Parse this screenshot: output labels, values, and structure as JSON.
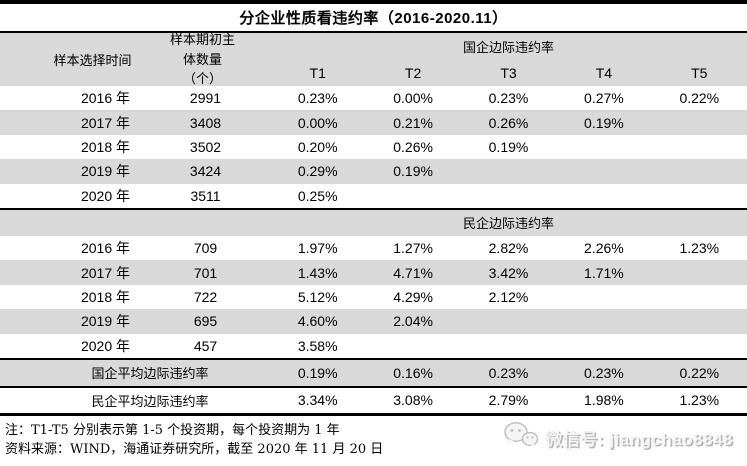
{
  "colors": {
    "band_gray": "#d9d9d9",
    "row_alt_gray": "#d9d9d9",
    "rule_black": "#000000",
    "watermark_gray": "#b3b3b3"
  },
  "chart_data": {
    "type": "table",
    "title": "分企业性质看违约率（2016-2020.11）",
    "header": {
      "time_label": "样本选择时间",
      "count_label_line1": "样本期初主体数量",
      "count_label_line2": "（个）",
      "periods": [
        "T1",
        "T2",
        "T3",
        "T4",
        "T5"
      ]
    },
    "sections": [
      {
        "header": "国企边际违约率",
        "rows": [
          {
            "year": "2016 年",
            "count": "2991",
            "values": [
              "0.23%",
              "0.00%",
              "0.23%",
              "0.27%",
              "0.22%"
            ]
          },
          {
            "year": "2017 年",
            "count": "3408",
            "values": [
              "0.00%",
              "0.21%",
              "0.26%",
              "0.19%",
              ""
            ]
          },
          {
            "year": "2018 年",
            "count": "3502",
            "values": [
              "0.20%",
              "0.26%",
              "0.19%",
              "",
              ""
            ]
          },
          {
            "year": "2019 年",
            "count": "3424",
            "values": [
              "0.29%",
              "0.19%",
              "",
              "",
              ""
            ]
          },
          {
            "year": "2020 年",
            "count": "3511",
            "values": [
              "0.25%",
              "",
              "",
              "",
              ""
            ]
          }
        ]
      },
      {
        "header": "民企边际违约率",
        "rows": [
          {
            "year": "2016 年",
            "count": "709",
            "values": [
              "1.97%",
              "1.27%",
              "2.82%",
              "2.26%",
              "1.23%"
            ]
          },
          {
            "year": "2017 年",
            "count": "701",
            "values": [
              "1.43%",
              "4.71%",
              "3.42%",
              "1.71%",
              ""
            ]
          },
          {
            "year": "2018 年",
            "count": "722",
            "values": [
              "5.12%",
              "4.29%",
              "2.12%",
              "",
              ""
            ]
          },
          {
            "year": "2019 年",
            "count": "695",
            "values": [
              "4.60%",
              "2.04%",
              "",
              "",
              ""
            ]
          },
          {
            "year": "2020 年",
            "count": "457",
            "values": [
              "3.58%",
              "",
              "",
              "",
              ""
            ]
          }
        ]
      }
    ],
    "summary": [
      {
        "label": "国企平均边际违约率",
        "values": [
          "0.19%",
          "0.16%",
          "0.23%",
          "0.23%",
          "0.22%"
        ]
      },
      {
        "label": "民企平均边际违约率",
        "values": [
          "3.34%",
          "3.08%",
          "2.79%",
          "1.98%",
          "1.23%"
        ]
      }
    ]
  },
  "notes": {
    "line1": "注：T1-T5 分别表示第 1-5 个投资期，每个投资期为 1 年",
    "line2": "资料来源：WIND，海通证券研究所，截至 2020 年 11 月 20 日"
  },
  "watermark": {
    "icon": "wechat-icon",
    "text": "微信号: jiangchao8848"
  }
}
